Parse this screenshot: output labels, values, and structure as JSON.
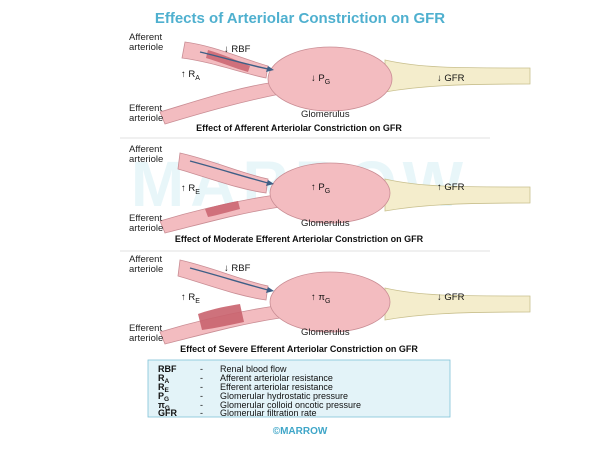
{
  "title": "Effects of Arteriolar Constriction on GFR",
  "panels": [
    {
      "afferent_label": [
        "Afferent",
        "arteriole"
      ],
      "efferent_label": [
        "Efferent",
        "arteriole"
      ],
      "rbf": "↓ RBF",
      "resistance": "↑ R",
      "resistance_sub": "A",
      "pressure": "↓ P",
      "pressure_sub": "G",
      "gfr": "↓ GFR",
      "glomerulus": "Glomerulus",
      "caption": "Effect of Afferent Arteriolar Constriction on GFR"
    },
    {
      "afferent_label": [
        "Afferent",
        "arteriole"
      ],
      "efferent_label": [
        "Efferent",
        "arteriole"
      ],
      "rbf": "",
      "resistance": "↑ R",
      "resistance_sub": "E",
      "pressure": "↑ P",
      "pressure_sub": "G",
      "gfr": "↑ GFR",
      "glomerulus": "Glomerulus",
      "caption": "Effect of Moderate Efferent Arteriolar Constriction on GFR"
    },
    {
      "afferent_label": [
        "Afferent",
        "arteriole"
      ],
      "efferent_label": [
        "Efferent",
        "arteriole"
      ],
      "rbf": "↓ RBF",
      "resistance": "↑ R",
      "resistance_sub": "E",
      "pressure": "↑ π",
      "pressure_sub": "G",
      "gfr": "↓ GFR",
      "glomerulus": "Glomerulus",
      "caption": "Effect of Severe Efferent Arteriolar Constriction on GFR"
    }
  ],
  "key": [
    {
      "abbr": "RBF",
      "sub": "",
      "dash": "-",
      "desc": "Renal blood flow"
    },
    {
      "abbr": "R",
      "sub": "A",
      "dash": "-",
      "desc": "Afferent arteriolar resistance"
    },
    {
      "abbr": "R",
      "sub": "E",
      "dash": "-",
      "desc": "Efferent arteriolar resistance"
    },
    {
      "abbr": "P",
      "sub": "G",
      "dash": "-",
      "desc": "Glomerular hydrostatic pressure"
    },
    {
      "abbr": "π",
      "sub": "G",
      "dash": "-",
      "desc": "Glomerular colloid oncotic pressure"
    },
    {
      "abbr": "GFR",
      "sub": "",
      "dash": "-",
      "desc": "Glomerular filtration rate"
    }
  ],
  "watermark": "MARROW",
  "brand": "©MARROW",
  "colors": {
    "title": "#4fb0cf",
    "vessel": "#f3bcc0",
    "vessel_dark": "#e39aa2",
    "constriction": "#c9636e",
    "tubule": "#f4edcc",
    "arrow": "#3e5f86",
    "key_bg": "#e3f3f8",
    "key_border": "#7fc2d8",
    "divider": "#d8d8d8"
  }
}
